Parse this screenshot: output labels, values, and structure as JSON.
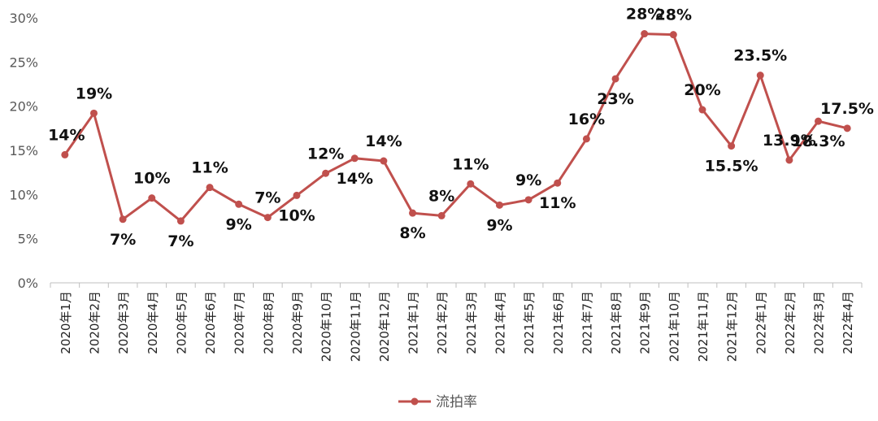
{
  "chart_data": {
    "type": "line",
    "categories": [
      "2020年1月",
      "2020年2月",
      "2020年3月",
      "2020年4月",
      "2020年5月",
      "2020年6月",
      "2020年7月",
      "2020年8月",
      "2020年9月",
      "2020年10月",
      "2020年11月",
      "2020年12月",
      "2021年1月",
      "2021年2月",
      "2021年3月",
      "2021年4月",
      "2021年5月",
      "2021年6月",
      "2021年7月",
      "2021年8月",
      "2021年9月",
      "2021年10月",
      "2021年11月",
      "2021年12月",
      "2022年1月",
      "2022年2月",
      "2022年3月",
      "2022年4月"
    ],
    "series": [
      {
        "name": "流拍率",
        "color": "#c0504d",
        "values": [
          14.5,
          19.2,
          7.2,
          9.6,
          7.0,
          10.8,
          8.9,
          7.4,
          9.9,
          12.4,
          14.1,
          13.8,
          7.9,
          7.6,
          11.2,
          8.8,
          9.4,
          11.3,
          16.3,
          23.1,
          28.2,
          28.1,
          19.6,
          15.5,
          23.5,
          13.9,
          18.3,
          17.5
        ],
        "labels": [
          "14%",
          "19%",
          "7%",
          "10%",
          "7%",
          "11%",
          "9%",
          "7%",
          "10%",
          "12%",
          "14%",
          "14%",
          "8%",
          "8%",
          "11%",
          "9%",
          "9%",
          "11%",
          "16%",
          "23%",
          "28%",
          "28%",
          "20%",
          "15.5%",
          "23.5%",
          "13.9%",
          "18.3%",
          "17.5%"
        ],
        "label_positions": [
          "above",
          "above",
          "below",
          "above",
          "below",
          "above",
          "below",
          "above",
          "below",
          "above",
          "below",
          "above",
          "below",
          "above",
          "above",
          "below",
          "above",
          "below",
          "above",
          "below",
          "above",
          "above",
          "above",
          "below",
          "above",
          "above",
          "below",
          "above"
        ]
      }
    ],
    "y_ticks": [
      "0%",
      "5%",
      "10%",
      "15%",
      "20%",
      "25%",
      "30%"
    ],
    "ylim": [
      0,
      30
    ],
    "grid": false,
    "legend_position": "bottom"
  }
}
